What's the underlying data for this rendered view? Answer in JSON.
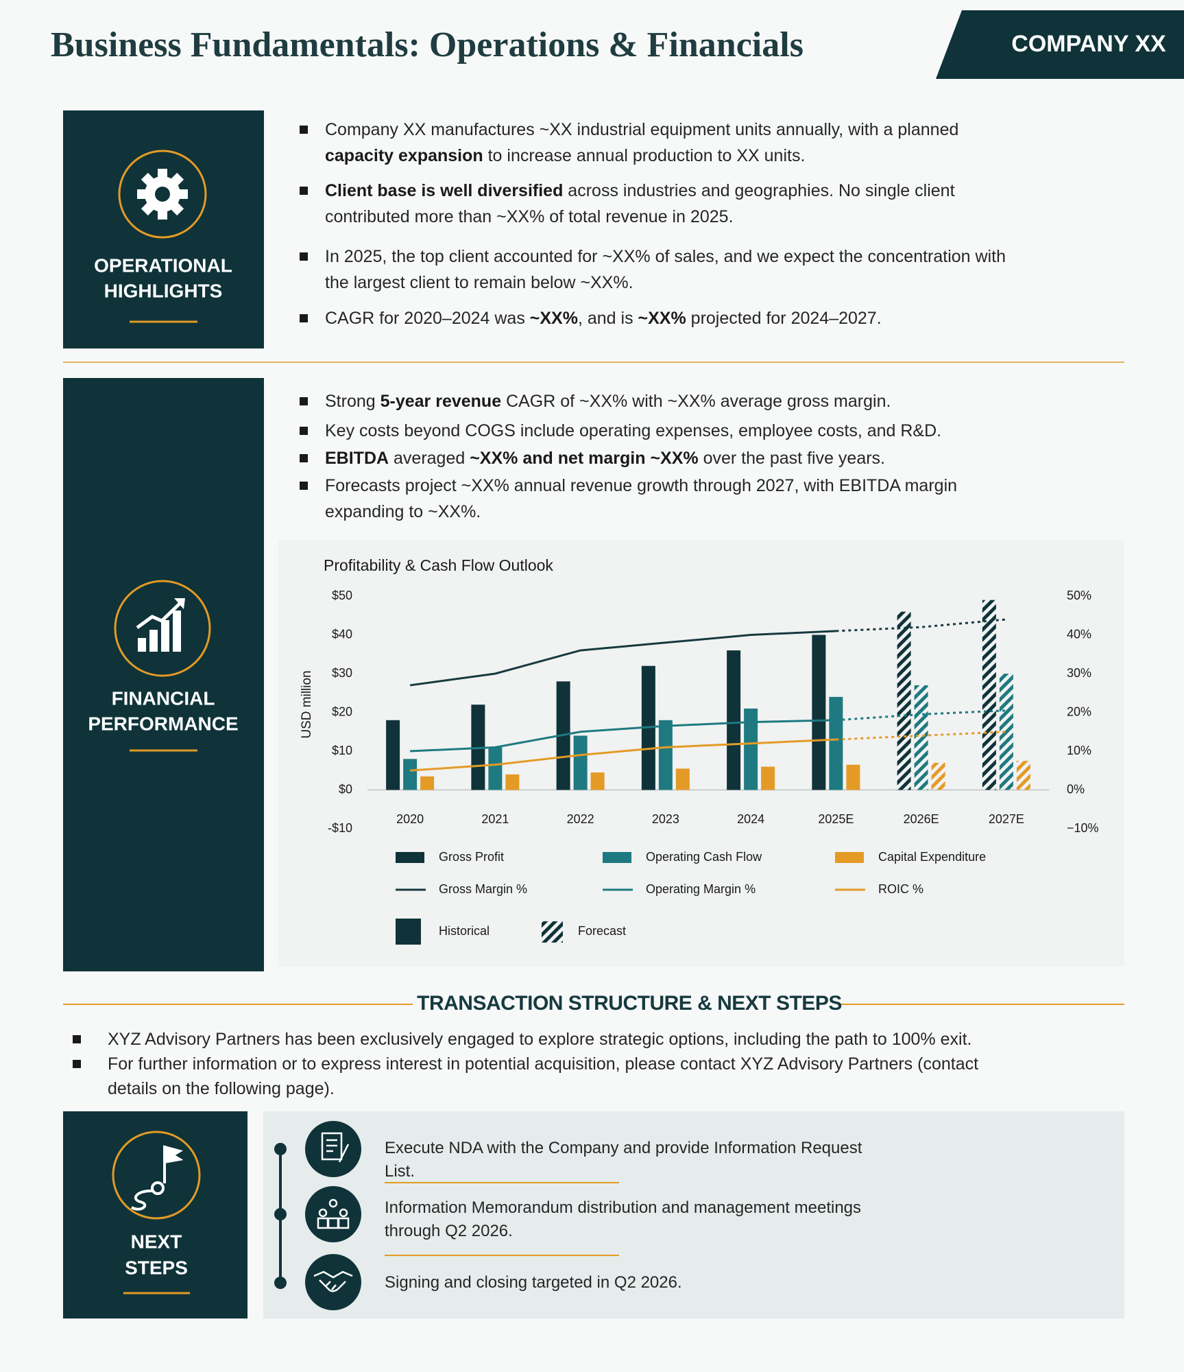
{
  "header": {
    "title": "Business Fundamentals: Operations & Financials",
    "badge": "COMPANY XX"
  },
  "operations": {
    "title_lines": [
      "OPERATIONAL",
      "HIGHLIGHTS"
    ],
    "bullets": [
      [
        {
          "text": "Company XX manufactures ~XX industrial equipment units annually, with a planned ",
          "bold": false
        },
        {
          "text": "capacity expansion",
          "bold": true
        },
        {
          "text": " to increase annual production to XX units.",
          "bold": false
        }
      ],
      [
        {
          "text": "Client base is well diversified",
          "bold": true
        },
        {
          "text": " across industries and geographies. No single client contributed more than ~XX% of total revenue in 2025.",
          "bold": false
        }
      ],
      [
        {
          "text": "In 2025, the top client accounted for ~XX% of sales, and we expect the concentration with the largest client to remain below ~XX%.",
          "bold": false
        }
      ],
      [
        {
          "text": "CAGR for 2020–2024 was ",
          "bold": false
        },
        {
          "text": "~XX%",
          "bold": true
        },
        {
          "text": ", and is ",
          "bold": false
        },
        {
          "text": "~XX%",
          "bold": true
        },
        {
          "text": " projected for 2024–2027.",
          "bold": false
        }
      ]
    ]
  },
  "financials": {
    "title_lines": [
      "FINANCIAL",
      "PERFORMANCE"
    ],
    "bullets": [
      [
        {
          "text": "Strong ",
          "bold": false
        },
        {
          "text": "5-year revenue",
          "bold": true
        },
        {
          "text": " CAGR of ~XX% with ~XX% average gross margin.",
          "bold": false
        }
      ],
      [
        {
          "text": "Key costs beyond COGS include operating expenses, employee costs, and R&D.",
          "bold": false
        }
      ],
      [
        {
          "text": "EBITDA",
          "bold": true
        },
        {
          "text": " averaged ",
          "bold": false
        },
        {
          "text": "~XX% and net margin ~XX%",
          "bold": true
        },
        {
          "text": " over the past five years.",
          "bold": false
        }
      ],
      [
        {
          "text": "Forecasts project ~XX% annual revenue growth through 2027, with EBITDA margin expanding to ~XX%.",
          "bold": false
        }
      ]
    ]
  },
  "chart_data": {
    "type": "bar_line",
    "title": "Profitability & Cash Flow Outlook",
    "y_label": "USD million",
    "categories": [
      "2020",
      "2021",
      "2022",
      "2023",
      "2024",
      "2025E",
      "2026E",
      "2027E"
    ],
    "forecast": [
      false,
      false,
      false,
      false,
      false,
      false,
      true,
      true
    ],
    "series": [
      {
        "name": "Gross Profit",
        "type": "bar",
        "color": "#0f3339",
        "values": [
          18,
          22,
          28,
          32,
          36,
          40,
          46,
          49
        ]
      },
      {
        "name": "Operating Cash Flow",
        "type": "bar",
        "color": "#1e7a80",
        "values": [
          8,
          11,
          14,
          18,
          21,
          24,
          27,
          30
        ]
      },
      {
        "name": "Capital Expenditure",
        "type": "bar",
        "color": "#e39b26",
        "values": [
          3.5,
          4,
          4.5,
          5.5,
          6,
          6.5,
          7,
          7.5
        ]
      },
      {
        "name": "Gross Margin %",
        "type": "line",
        "axis": "y2",
        "color": "#163a3f",
        "values": [
          27,
          30,
          36,
          38,
          40,
          41,
          42,
          44
        ]
      },
      {
        "name": "Operating Margin %",
        "type": "line",
        "axis": "y2",
        "color": "#1e7a80",
        "values": [
          10,
          11,
          15,
          16.5,
          17.5,
          18,
          19.5,
          20.5
        ]
      },
      {
        "name": "ROIC %",
        "type": "line",
        "axis": "y2",
        "color": "#e39b26",
        "values": [
          5,
          6.5,
          9,
          11,
          12,
          13,
          14,
          15
        ]
      }
    ],
    "historical_label": "Historical",
    "forecast_label": "Forecast",
    "ylim": [
      -10,
      50
    ],
    "yticks": [
      {
        "value": -10,
        "label": "-$10"
      },
      {
        "value": 0,
        "label": "$0"
      },
      {
        "value": 10,
        "label": "$10"
      },
      {
        "value": 20,
        "label": "$20"
      },
      {
        "value": 30,
        "label": "$30"
      },
      {
        "value": 40,
        "label": "$40"
      },
      {
        "value": 50,
        "label": "$50"
      }
    ],
    "y2lim": [
      -10,
      50
    ],
    "y2ticks": [
      {
        "value": -10,
        "label": "−10%"
      },
      {
        "value": 0,
        "label": "0%"
      },
      {
        "value": 10,
        "label": "10%"
      },
      {
        "value": 20,
        "label": "20%"
      },
      {
        "value": 30,
        "label": "30%"
      },
      {
        "value": 40,
        "label": "40%"
      },
      {
        "value": 50,
        "label": "50%"
      }
    ]
  },
  "transaction": {
    "heading": "TRANSACTION STRUCTURE & NEXT STEPS",
    "bullets": [
      "XYZ Advisory Partners has been exclusively engaged to explore strategic options, including the path to 100% exit.",
      "For further information or to express interest in potential acquisition, please contact XYZ Advisory Partners (contact details on the following page)."
    ]
  },
  "next_steps": {
    "title_lines": [
      "NEXT",
      "STEPS"
    ],
    "steps": [
      "Execute NDA with the Company and provide Information Request List.",
      "Information Memorandum distribution and management meetings through Q2 2026.",
      "Signing and closing targeted in Q2 2026."
    ]
  }
}
